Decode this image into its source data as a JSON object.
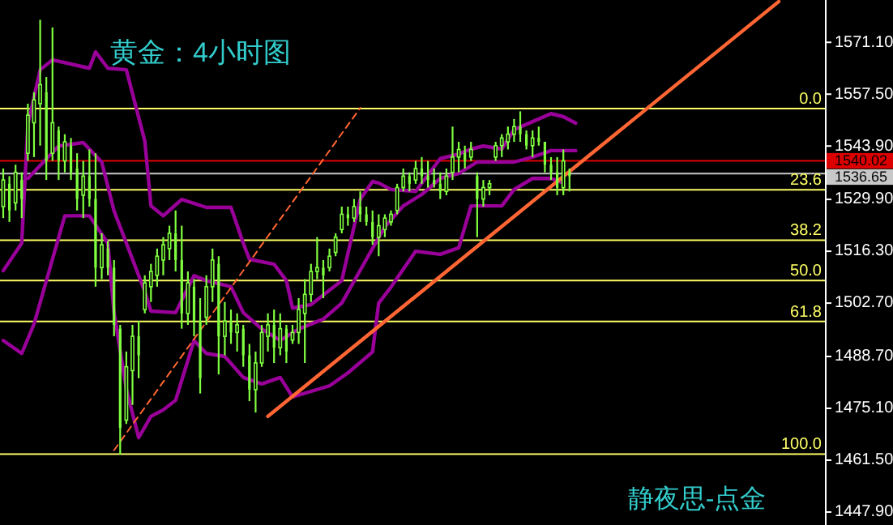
{
  "chart_data": {
    "type": "candlestick",
    "title": "黄金：4小时图",
    "categories": [
      null,
      null,
      null,
      null,
      null,
      null,
      null,
      null,
      null,
      null,
      null,
      null,
      null,
      null,
      null,
      null,
      null,
      null,
      null,
      null,
      null,
      null,
      null,
      null,
      null,
      null,
      null,
      null,
      null,
      null,
      null,
      null,
      null,
      null,
      null,
      null,
      null,
      null,
      null,
      null,
      null,
      null,
      null,
      null,
      null,
      null,
      null,
      null,
      null,
      null,
      null,
      null,
      null,
      null,
      null,
      null,
      null,
      null,
      null,
      null,
      null,
      null,
      null,
      null,
      null,
      null,
      null,
      null,
      null,
      null,
      null,
      null,
      null,
      null,
      null,
      null,
      null,
      null,
      null,
      null,
      null,
      null,
      null,
      null,
      null,
      null,
      null,
      null,
      null,
      null,
      null,
      null,
      null,
      null,
      null,
      null,
      null,
      null,
      null,
      null,
      null,
      null,
      null,
      null,
      null,
      null,
      null,
      null,
      null,
      null,
      null,
      null,
      null,
      null,
      null,
      null,
      null,
      null,
      null,
      null,
      null,
      null,
      null,
      null,
      null,
      null,
      null,
      null,
      null,
      null,
      null,
      null,
      null,
      null
    ],
    "color": "#80ff40",
    "ohlc": [
      [
        1528,
        1538,
        1525,
        1535
      ],
      [
        1534,
        1536,
        1524,
        1527
      ],
      [
        1529,
        1539,
        1527,
        1537
      ],
      [
        1535,
        1537,
        1525,
        1530
      ],
      [
        1542,
        1555,
        1540,
        1552
      ],
      [
        1550,
        1558,
        1541,
        1556
      ],
      [
        1555,
        1577,
        1544,
        1560
      ],
      [
        1558,
        1562,
        1535,
        1540
      ],
      [
        1542,
        1575,
        1540,
        1550
      ],
      [
        1548,
        1549,
        1535,
        1540
      ],
      [
        1540,
        1547,
        1537,
        1545
      ],
      [
        1544,
        1546,
        1535,
        1537
      ],
      [
        1538,
        1542,
        1527,
        1530
      ],
      [
        1531,
        1540,
        1525,
        1536
      ],
      [
        1536,
        1543,
        1528,
        1530
      ],
      [
        1530,
        1542,
        1507,
        1512
      ],
      [
        1512,
        1521,
        1509,
        1518
      ],
      [
        1517,
        1519,
        1510,
        1512
      ],
      [
        1512,
        1514,
        1494,
        1497
      ],
      [
        1496,
        1497,
        1463,
        1470
      ],
      [
        1472,
        1490,
        1471,
        1486
      ],
      [
        1485,
        1497,
        1476,
        1494
      ],
      [
        1494,
        1498,
        1483,
        1489
      ],
      [
        1501,
        1510,
        1500,
        1508
      ],
      [
        1507,
        1513,
        1503,
        1511
      ],
      [
        1510,
        1517,
        1507,
        1515
      ],
      [
        1514,
        1520,
        1510,
        1518
      ],
      [
        1517,
        1523,
        1514,
        1521
      ],
      [
        1521,
        1527,
        1511,
        1514
      ],
      [
        1514,
        1523,
        1496,
        1500
      ],
      [
        1500,
        1511,
        1497,
        1508
      ],
      [
        1507,
        1509,
        1494,
        1498
      ],
      [
        1498,
        1504,
        1479,
        1483
      ],
      [
        1499,
        1510,
        1497,
        1507
      ],
      [
        1507,
        1517,
        1503,
        1514
      ],
      [
        1513,
        1515,
        1484,
        1494
      ],
      [
        1494,
        1503,
        1489,
        1498
      ],
      [
        1498,
        1501,
        1492,
        1495
      ],
      [
        1495,
        1500,
        1490,
        1497
      ],
      [
        1496,
        1497,
        1486,
        1489
      ],
      [
        1489,
        1492,
        1477,
        1480
      ],
      [
        1480,
        1490,
        1474,
        1487
      ],
      [
        1487,
        1497,
        1486,
        1495
      ],
      [
        1494,
        1500,
        1490,
        1497
      ],
      [
        1497,
        1501,
        1487,
        1491
      ],
      [
        1491,
        1500,
        1489,
        1496
      ],
      [
        1496,
        1497,
        1487,
        1490
      ],
      [
        1493,
        1497,
        1492,
        1495
      ],
      [
        1495,
        1504,
        1492,
        1501
      ],
      [
        1500,
        1509,
        1487,
        1505
      ],
      [
        1505,
        1513,
        1503,
        1511
      ],
      [
        1511,
        1520,
        1509,
        1512
      ],
      [
        1512,
        1514,
        1504,
        1510
      ],
      [
        1512,
        1517,
        1511,
        1515
      ],
      [
        1516,
        1521,
        1515,
        1520
      ],
      [
        1522,
        1528,
        1521,
        1526
      ],
      [
        1526,
        1528,
        1523,
        1525
      ],
      [
        1525,
        1530,
        1524,
        1528
      ],
      [
        1528,
        1532,
        1524,
        1526
      ],
      [
        1526,
        1528,
        1523,
        1524
      ],
      [
        1524,
        1527,
        1518,
        1520
      ],
      [
        1520,
        1526,
        1515,
        1523
      ],
      [
        1522,
        1526,
        1520,
        1525
      ],
      [
        1524,
        1527,
        1523,
        1526
      ],
      [
        1527,
        1534,
        1526,
        1533
      ],
      [
        1533,
        1538,
        1532,
        1536
      ],
      [
        1536,
        1537,
        1532,
        1534
      ],
      [
        1535,
        1540,
        1534,
        1538
      ],
      [
        1538,
        1541,
        1534,
        1536
      ],
      [
        1536,
        1540,
        1533,
        1535
      ],
      [
        1535,
        1538,
        1533,
        1534
      ],
      [
        1534,
        1537,
        1530,
        1532
      ],
      [
        1532,
        1538,
        1531,
        1536
      ],
      [
        1537,
        1549,
        1535,
        1541
      ],
      [
        1541,
        1545,
        1537,
        1543
      ],
      [
        1542,
        1544,
        1538,
        1540
      ],
      [
        1541,
        1545,
        1540,
        1543
      ],
      [
        1536,
        1537,
        1520,
        1530
      ],
      [
        1530,
        1535,
        1528,
        1533
      ],
      [
        1533,
        1535,
        1531,
        1534
      ],
      [
        1541,
        1545,
        1540,
        1544
      ],
      [
        1544,
        1547,
        1541,
        1546
      ],
      [
        1545,
        1549,
        1543,
        1547
      ],
      [
        1547,
        1551,
        1545,
        1549
      ],
      [
        1549,
        1553,
        1545,
        1547
      ],
      [
        1547,
        1548,
        1543,
        1544
      ],
      [
        1544,
        1548,
        1541,
        1546
      ],
      [
        1546,
        1549,
        1544,
        1545
      ],
      [
        1545,
        1545,
        1537,
        1539
      ],
      [
        1539,
        1541,
        1535,
        1537
      ],
      [
        1537,
        1541,
        1531,
        1533
      ],
      [
        1533,
        1543,
        1531,
        1540
      ],
      [
        1537,
        1538,
        1532,
        1536
      ],
      null,
      null,
      null,
      null,
      null,
      null,
      null,
      null,
      null,
      null,
      null,
      null,
      null,
      null,
      null,
      null,
      null,
      null,
      null,
      null,
      null,
      null,
      null,
      null,
      null,
      null,
      null,
      null,
      null,
      null,
      null,
      null,
      null,
      null,
      null,
      null,
      null,
      null,
      null,
      null,
      null
    ],
    "series": [
      {
        "type": "line",
        "color": "#990099",
        "values": [
          1511.2,
          null,
          null,
          1518.4,
          1549.5,
          null,
          1563.9,
          null,
          1566.5,
          null,
          null,
          null,
          null,
          null,
          1564.3,
          1568.6,
          null,
          1564.3,
          null,
          null,
          1563.9,
          null,
          null,
          1545.2,
          1528.2,
          null,
          1525.6,
          null,
          null,
          1529.9,
          null,
          null,
          null,
          1527.8,
          null,
          null,
          null,
          1527.8,
          null,
          1518.4,
          1514.2,
          null,
          null,
          null,
          1512.9,
          null,
          1508.6,
          1501.4,
          null,
          null,
          1502.3,
          null,
          null,
          null,
          null,
          1508.6,
          null,
          null,
          1529.9,
          null,
          1534.6,
          1534.2,
          null,
          1532.5,
          null,
          null,
          null,
          1532.0,
          null,
          null,
          null,
          1540.6,
          null,
          null,
          1541.8,
          null,
          1543.1,
          null,
          1543.9,
          null,
          null,
          1543.1,
          null,
          1548.2,
          null,
          null,
          1550.3,
          null,
          null,
          1552.4,
          null,
          1551.6,
          null,
          1549.9,
          null,
          null,
          null,
          null,
          null,
          null,
          null,
          null,
          null,
          null,
          null,
          null,
          null,
          null,
          null,
          null,
          null,
          null,
          null,
          null,
          null,
          null,
          null,
          null,
          null,
          null,
          null,
          null,
          null,
          null,
          null,
          null,
          null,
          null,
          null,
          null,
          null,
          null,
          null,
          null
        ]
      },
      {
        "type": "line",
        "color": "#990099",
        "values": [
          null,
          null,
          null,
          null,
          1535.4,
          null,
          null,
          null,
          null,
          1543.9,
          null,
          null,
          null,
          1544.8,
          null,
          null,
          1539.7,
          null,
          1526.9,
          null,
          null,
          1514.2,
          null,
          1505.7,
          1500.6,
          null,
          null,
          null,
          1500.2,
          null,
          null,
          1509.9,
          null,
          1508.6,
          null,
          null,
          null,
          1507.0,
          null,
          1500.2,
          null,
          null,
          1495.9,
          null,
          null,
          1492.9,
          null,
          null,
          1495.9,
          null,
          null,
          null,
          1498.5,
          null,
          null,
          1502.7,
          null,
          null,
          null,
          1514.2,
          null,
          null,
          1522.7,
          null,
          null,
          1528.2,
          null,
          null,
          1531.2,
          null,
          null,
          1535.4,
          null,
          null,
          1536.7,
          null,
          null,
          1539.7,
          null,
          null,
          null,
          1539.7,
          null,
          1539.7,
          null,
          null,
          1541.0,
          null,
          null,
          1542.7,
          null,
          null,
          null,
          1542.7,
          null,
          null,
          null,
          null,
          null,
          null,
          null,
          null,
          null,
          null,
          null,
          null,
          null,
          null,
          null,
          null,
          null,
          null,
          null,
          null,
          null,
          null,
          null,
          null,
          null,
          null,
          null,
          null,
          null,
          null,
          null,
          null,
          null,
          null,
          null,
          null,
          null,
          null,
          null,
          null
        ]
      },
      {
        "type": "line",
        "color": "#990099",
        "values": [
          1492.9,
          null,
          null,
          1489.5,
          null,
          1497.2,
          null,
          null,
          1514.2,
          null,
          1525.6,
          null,
          null,
          null,
          1525.6,
          null,
          null,
          1518.4,
          1500.2,
          null,
          1480.2,
          null,
          1467.4,
          null,
          1473.0,
          null,
          1474.7,
          null,
          1477.2,
          null,
          null,
          1492.9,
          null,
          1489.5,
          null,
          null,
          1488.7,
          null,
          null,
          1483.2,
          null,
          null,
          1481.5,
          null,
          null,
          1483.2,
          null,
          1478.1,
          null,
          null,
          null,
          null,
          null,
          1481.0,
          null,
          null,
          1484.4,
          null,
          null,
          null,
          1489.9,
          1502.7,
          null,
          1506.9,
          null,
          null,
          null,
          1516.3,
          null,
          null,
          null,
          1515.5,
          null,
          null,
          1517.2,
          null,
          1528.2,
          null,
          null,
          null,
          null,
          1528.2,
          null,
          1532.5,
          null,
          null,
          1535.4,
          null,
          null,
          1535.4,
          null,
          1534.2,
          null,
          null,
          null,
          null,
          null,
          null,
          null,
          null,
          null,
          null,
          null,
          null,
          null,
          null,
          null,
          null,
          null,
          null,
          null,
          null,
          null,
          null,
          null,
          null,
          null,
          null,
          null,
          null,
          null,
          null,
          null,
          null,
          null,
          null,
          null,
          null,
          null,
          null,
          null,
          null,
          null,
          null
        ]
      },
      {
        "type": "line",
        "color": "#ff6633",
        "values": [
          null,
          null,
          null,
          null,
          null,
          null,
          null,
          null,
          null,
          null,
          null,
          null,
          null,
          null,
          null,
          null,
          null,
          null,
          null,
          null,
          null,
          null,
          null,
          null,
          null,
          null,
          null,
          null,
          null,
          null,
          null,
          null,
          null,
          null,
          null,
          null,
          null,
          null,
          null,
          null,
          null,
          null,
          null,
          1473.0,
          null,
          null,
          null,
          null,
          null,
          null,
          null,
          null,
          null,
          null,
          null,
          null,
          null,
          null,
          null,
          null,
          null,
          null,
          null,
          null,
          null,
          null,
          null,
          null,
          null,
          null,
          null,
          null,
          null,
          null,
          null,
          null,
          null,
          null,
          null,
          null,
          null,
          null,
          null,
          null,
          null,
          null,
          null,
          null,
          null,
          null,
          null,
          null,
          null,
          null,
          null,
          null,
          null,
          null,
          null,
          null,
          null,
          null,
          null,
          null,
          null,
          null,
          null,
          null,
          null,
          null,
          null,
          null,
          null,
          null,
          null,
          null,
          null,
          null,
          null,
          null,
          null,
          null,
          null,
          null,
          null,
          null,
          1581.8,
          null,
          null,
          null,
          null,
          null,
          null,
          null
        ]
      },
      {
        "type": "line",
        "color": "#ff6633",
        "line_style": "dashed",
        "values": [
          null,
          null,
          null,
          null,
          null,
          null,
          null,
          null,
          null,
          null,
          null,
          null,
          null,
          null,
          null,
          null,
          null,
          null,
          1464.1,
          null,
          null,
          null,
          null,
          null,
          null,
          null,
          null,
          null,
          null,
          null,
          null,
          null,
          null,
          null,
          null,
          null,
          null,
          null,
          null,
          null,
          null,
          null,
          null,
          null,
          null,
          null,
          null,
          null,
          null,
          null,
          null,
          null,
          null,
          null,
          null,
          null,
          null,
          null,
          1553.9,
          null,
          null,
          null,
          null,
          null,
          null,
          null,
          null,
          null,
          null,
          null,
          null,
          null,
          null,
          null,
          null,
          null,
          null,
          null,
          null,
          null,
          null,
          null,
          null,
          null,
          null,
          null,
          null,
          null,
          null,
          null,
          null,
          null,
          null,
          null,
          null,
          null,
          null,
          null,
          null,
          null,
          null,
          null,
          null,
          null,
          null,
          null,
          null,
          null,
          null,
          null,
          null,
          null,
          null,
          null,
          null,
          null,
          null,
          null,
          null,
          null,
          null,
          null,
          null,
          null,
          null,
          null,
          null,
          null,
          null,
          null,
          null,
          null,
          null,
          null
        ]
      }
    ],
    "ylim": [
      1444.5,
      1582.2
    ],
    "yticks": [
      {
        "value": 1571.1,
        "label": "1571.10"
      },
      {
        "value": 1557.5,
        "label": "1557.50"
      },
      {
        "value": 1543.9,
        "label": "1543.90"
      },
      {
        "value": 1529.9,
        "label": "1529.90"
      },
      {
        "value": 1516.3,
        "label": "1516.30"
      },
      {
        "value": 1502.7,
        "label": "1502.70"
      },
      {
        "value": 1488.7,
        "label": "1488.70"
      },
      {
        "value": 1475.1,
        "label": "1475.10"
      },
      {
        "value": 1461.5,
        "label": "1461.50"
      },
      {
        "value": 1447.9,
        "label": "1447.90"
      }
    ],
    "ref_lines": [
      {
        "axis": "y",
        "value": 1553.7,
        "color": "#ffff66"
      },
      {
        "axis": "y",
        "value": 1532.4,
        "color": "#ffff66"
      },
      {
        "axis": "y",
        "value": 1519.2,
        "color": "#ffff66"
      },
      {
        "axis": "y",
        "value": 1508.6,
        "color": "#ffff66"
      },
      {
        "axis": "y",
        "value": 1497.9,
        "color": "#ffff66"
      },
      {
        "axis": "y",
        "value": 1463.1,
        "color": "#ffff66"
      },
      {
        "axis": "y",
        "value": 1540.02,
        "label": "1540.02",
        "color": "#dd0000"
      },
      {
        "axis": "y",
        "value": 1536.65,
        "label": "1536.65",
        "color": "#c8c8c8"
      }
    ],
    "annotations": [
      {
        "text": "0.0",
        "y": 1553.7
      },
      {
        "text": "23.6",
        "y": 1532.4
      },
      {
        "text": "38.2",
        "y": 1519.2
      },
      {
        "text": "50.0",
        "y": 1508.6
      },
      {
        "text": "61.8",
        "y": 1497.9
      },
      {
        "text": "100.0",
        "y": 1463.1
      },
      "静夜思-点金"
    ],
    "tick_labels": "y"
  }
}
